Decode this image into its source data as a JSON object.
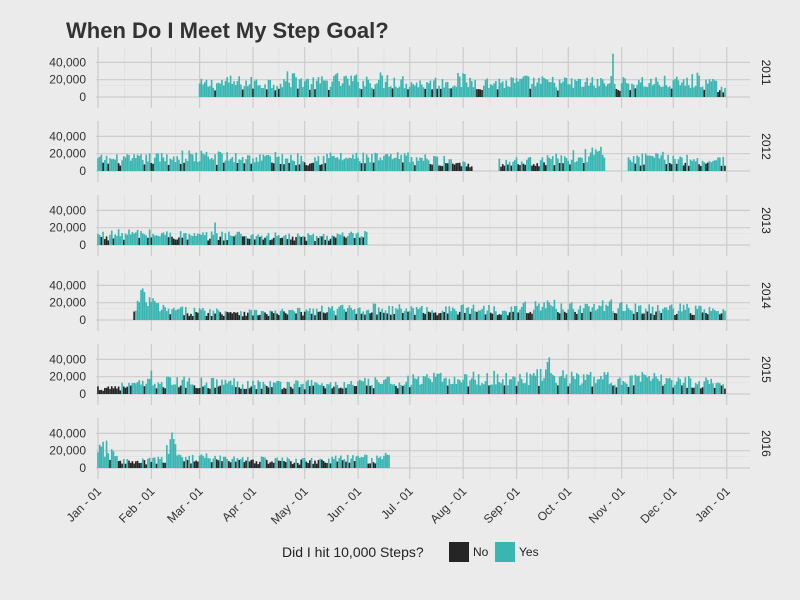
{
  "chart_data": {
    "type": "bar",
    "title": "When Do I Meet My Step Goal?",
    "xlabel": "",
    "ylabel": "",
    "ylim": [
      0,
      52000
    ],
    "y_ticks": [
      0,
      20000,
      40000
    ],
    "y_tick_labels": [
      "0",
      "20,000",
      "40,000"
    ],
    "x_tick_labels": [
      "Jan - 01",
      "Feb - 01",
      "Mar - 01",
      "Apr - 01",
      "May - 01",
      "Jun - 01",
      "Jul - 01",
      "Aug - 01",
      "Sep - 01",
      "Oct - 01",
      "Nov - 01",
      "Dec - 01",
      "Jan - 01"
    ],
    "grid": true,
    "goal_threshold": 10000,
    "legend": {
      "title": "Did I hit 10,000 Steps?",
      "position": "bottom",
      "entries": [
        {
          "label": "No",
          "color": "#252525"
        },
        {
          "label": "Yes",
          "color": "#3ab6b2"
        }
      ]
    },
    "colors": {
      "no": "#252525",
      "yes": "#3ab6b2",
      "background": "#ebebeb",
      "grid": "#cccccc"
    },
    "series_note_units": "daily steps; x = day of year",
    "panels": [
      {
        "year": "2011",
        "start_day": 60,
        "end_day": 365,
        "control_days": [
          60,
          76,
          90,
          104,
          115,
          125,
          140,
          150,
          170,
          190,
          210,
          230,
          250,
          270,
          285,
          299,
          300,
          301,
          320,
          340,
          350,
          365
        ],
        "control_values": [
          14000,
          17000,
          16000,
          16500,
          22000,
          15000,
          19000,
          18000,
          20000,
          15000,
          19000,
          16000,
          17000,
          16000,
          16000,
          17000,
          50000,
          15000,
          17000,
          16000,
          20000,
          9000
        ]
      },
      {
        "year": "2012",
        "start_day": 1,
        "end_day": 365,
        "gaps": [
          [
            219,
            233
          ],
          [
            296,
            308
          ]
        ],
        "control_days": [
          1,
          20,
          40,
          55,
          80,
          100,
          120,
          140,
          160,
          180,
          200,
          218,
          234,
          260,
          285,
          295,
          309,
          330,
          350,
          365
        ],
        "control_values": [
          13000,
          13000,
          15000,
          17000,
          15000,
          15000,
          14000,
          16000,
          14000,
          15000,
          12000,
          9000,
          10000,
          12000,
          18000,
          20000,
          13000,
          15000,
          12000,
          12000
        ],
        "spikes": [
          [
            288,
            27000
          ]
        ]
      },
      {
        "year": "2013",
        "start_day": 1,
        "end_day": 157,
        "control_days": [
          1,
          20,
          40,
          60,
          70,
          80,
          100,
          120,
          140,
          157
        ],
        "control_values": [
          11000,
          13000,
          12000,
          10000,
          11000,
          12000,
          10000,
          9000,
          10000,
          11000
        ],
        "spikes": [
          [
            69,
            26000
          ]
        ]
      },
      {
        "year": "2014",
        "start_day": 22,
        "end_day": 365,
        "control_days": [
          22,
          26,
          40,
          60,
          80,
          100,
          120,
          140,
          160,
          180,
          200,
          220,
          240,
          260,
          280,
          300,
          320,
          340,
          365
        ],
        "control_values": [
          8000,
          27000,
          11000,
          10000,
          10000,
          8000,
          10000,
          12000,
          13000,
          12000,
          11000,
          13000,
          12000,
          17000,
          14000,
          16000,
          12000,
          13000,
          9000
        ]
      },
      {
        "year": "2015",
        "start_day": 1,
        "end_day": 365,
        "control_days": [
          1,
          20,
          40,
          60,
          80,
          100,
          120,
          140,
          160,
          180,
          200,
          220,
          240,
          260,
          262,
          264,
          280,
          300,
          320,
          340,
          365
        ],
        "control_values": [
          7000,
          10000,
          14000,
          13000,
          13000,
          11000,
          12000,
          10000,
          13000,
          15000,
          17000,
          18000,
          18000,
          20000,
          37000,
          20000,
          18000,
          17000,
          17000,
          15000,
          12000
        ],
        "spikes": [
          [
            32,
            27000
          ],
          [
            354,
            19000
          ]
        ]
      },
      {
        "year": "2016",
        "start_day": 1,
        "end_day": 170,
        "control_days": [
          1,
          4,
          8,
          12,
          20,
          40,
          44,
          48,
          60,
          80,
          100,
          120,
          140,
          160,
          170
        ],
        "control_values": [
          14000,
          27000,
          16000,
          12000,
          6000,
          10000,
          41000,
          11000,
          12000,
          10000,
          9000,
          8000,
          10000,
          11000,
          12000
        ]
      }
    ]
  }
}
